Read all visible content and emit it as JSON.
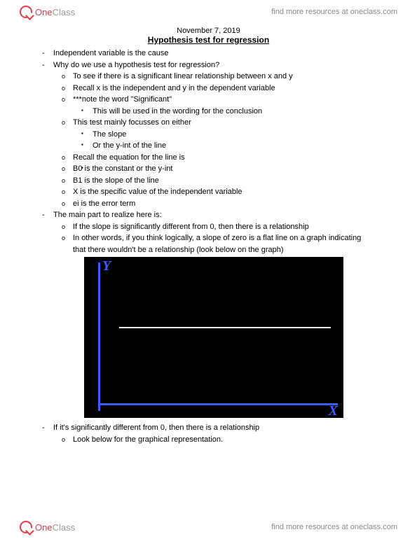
{
  "header": {
    "logo_one": "One",
    "logo_class": "Class",
    "link_text": "find more resources at oneclass.com"
  },
  "doc": {
    "date": "November 7, 2019",
    "title": "Hypothesis test for regression",
    "b1": "Independent variable is the cause",
    "b2": "Why do we use a hypothesis test for regression?",
    "b2_1": "To see if there is a significant linear relationship between x and y",
    "b2_2": "Recall x is the independent and y in the dependent variable",
    "b2_3": "***note the word \"Significant\"",
    "b2_3_1": "This will be used in the wording for the conclusion",
    "b2_4": "This test mainly focusses on either",
    "b2_4_1": "The slope",
    "b2_4_2": "Or the y-int of the line",
    "b2_5": "Recall the equation for the line is",
    "b2_5_1": " ",
    "b2_6": "B0 is the constant or the y-int",
    "b2_7": "B1 is the slope of the line",
    "b2_8": "X is the specific value of the independent variable",
    "b2_9": "ei is the error term",
    "b3": "The main part to realize here is:",
    "b3_1": "If the slope is significantly different from 0, then there is a relationship",
    "b3_2": "In other words, if you think logically, a slope of zero is a flat line on a graph indicating that there wouldn't be a relationship (look below on the graph)",
    "b4": "If it's significantly different from 0, then there is a relationship",
    "b4_1": "Look below for the graphical representation."
  },
  "graph": {
    "type": "line",
    "background_color": "#000000",
    "axis_color": "#3b5bff",
    "line_color": "#ffffff",
    "y_label": "Y",
    "x_label": "X",
    "xlim": [
      0,
      10
    ],
    "ylim": [
      0,
      10
    ],
    "line_y_value": 5,
    "line_width": 2,
    "axis_width": 3,
    "label_fontsize": 20
  },
  "footer": {
    "logo_one": "One",
    "logo_class": "Class",
    "link_text": "find more resources at oneclass.com"
  }
}
